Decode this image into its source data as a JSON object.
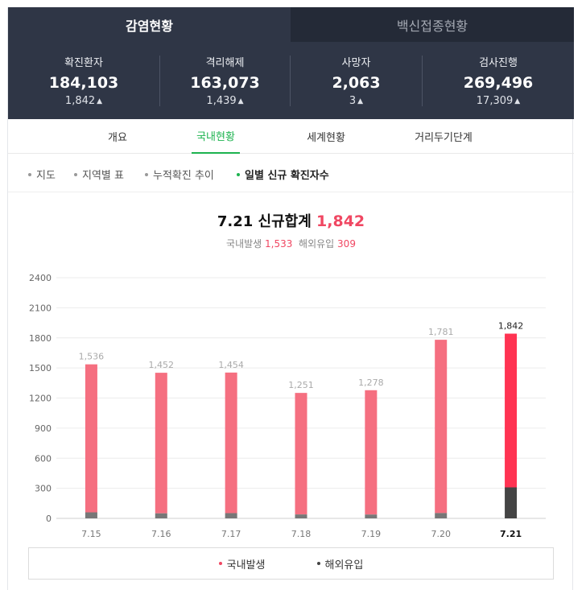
{
  "tabs": {
    "active": "감염현황",
    "inactive": "백신접종현황"
  },
  "stats": [
    {
      "label": "확진환자",
      "value": "184,103",
      "change": "1,842"
    },
    {
      "label": "격리해제",
      "value": "163,073",
      "change": "1,439"
    },
    {
      "label": "사망자",
      "value": "2,063",
      "change": "3"
    },
    {
      "label": "검사진행",
      "value": "269,496",
      "change": "17,309"
    }
  ],
  "subtabs": [
    "개요",
    "국내현황",
    "세계현황",
    "거리두기단계"
  ],
  "filters": [
    "지도",
    "지역별 표",
    "누적확진 추이",
    "일별 신규 확진자수"
  ],
  "summary": {
    "title": "7.21 신규합계",
    "total": "1,842",
    "domestic_label": "국내발생",
    "domestic": "1,533",
    "imported_label": "해외유입",
    "imported": "309"
  },
  "legend": [
    "국내발생",
    "해외유입"
  ],
  "colors": {
    "domestic": "#f56f80",
    "domestic_latest": "#ff3352",
    "imported": "#777777",
    "imported_latest": "#444444",
    "accent": "#1db34f"
  },
  "chart_data": {
    "type": "bar",
    "stacked": true,
    "categories": [
      "7.15",
      "7.16",
      "7.17",
      "7.18",
      "7.19",
      "7.20",
      "7.21"
    ],
    "series": [
      {
        "name": "국내발생",
        "values": [
          1476,
          1402,
          1402,
          1212,
          1240,
          1728,
          1533
        ]
      },
      {
        "name": "해외유입",
        "values": [
          60,
          50,
          52,
          39,
          38,
          53,
          309
        ]
      }
    ],
    "totals": [
      "1,536",
      "1,452",
      "1,454",
      "1,251",
      "1,278",
      "1,781",
      "1,842"
    ],
    "yticks": [
      "0",
      "300",
      "600",
      "900",
      "1200",
      "1500",
      "1800",
      "2100",
      "2400"
    ],
    "ylim": [
      0,
      2400
    ],
    "grid": true,
    "legend_position": "bottom"
  }
}
